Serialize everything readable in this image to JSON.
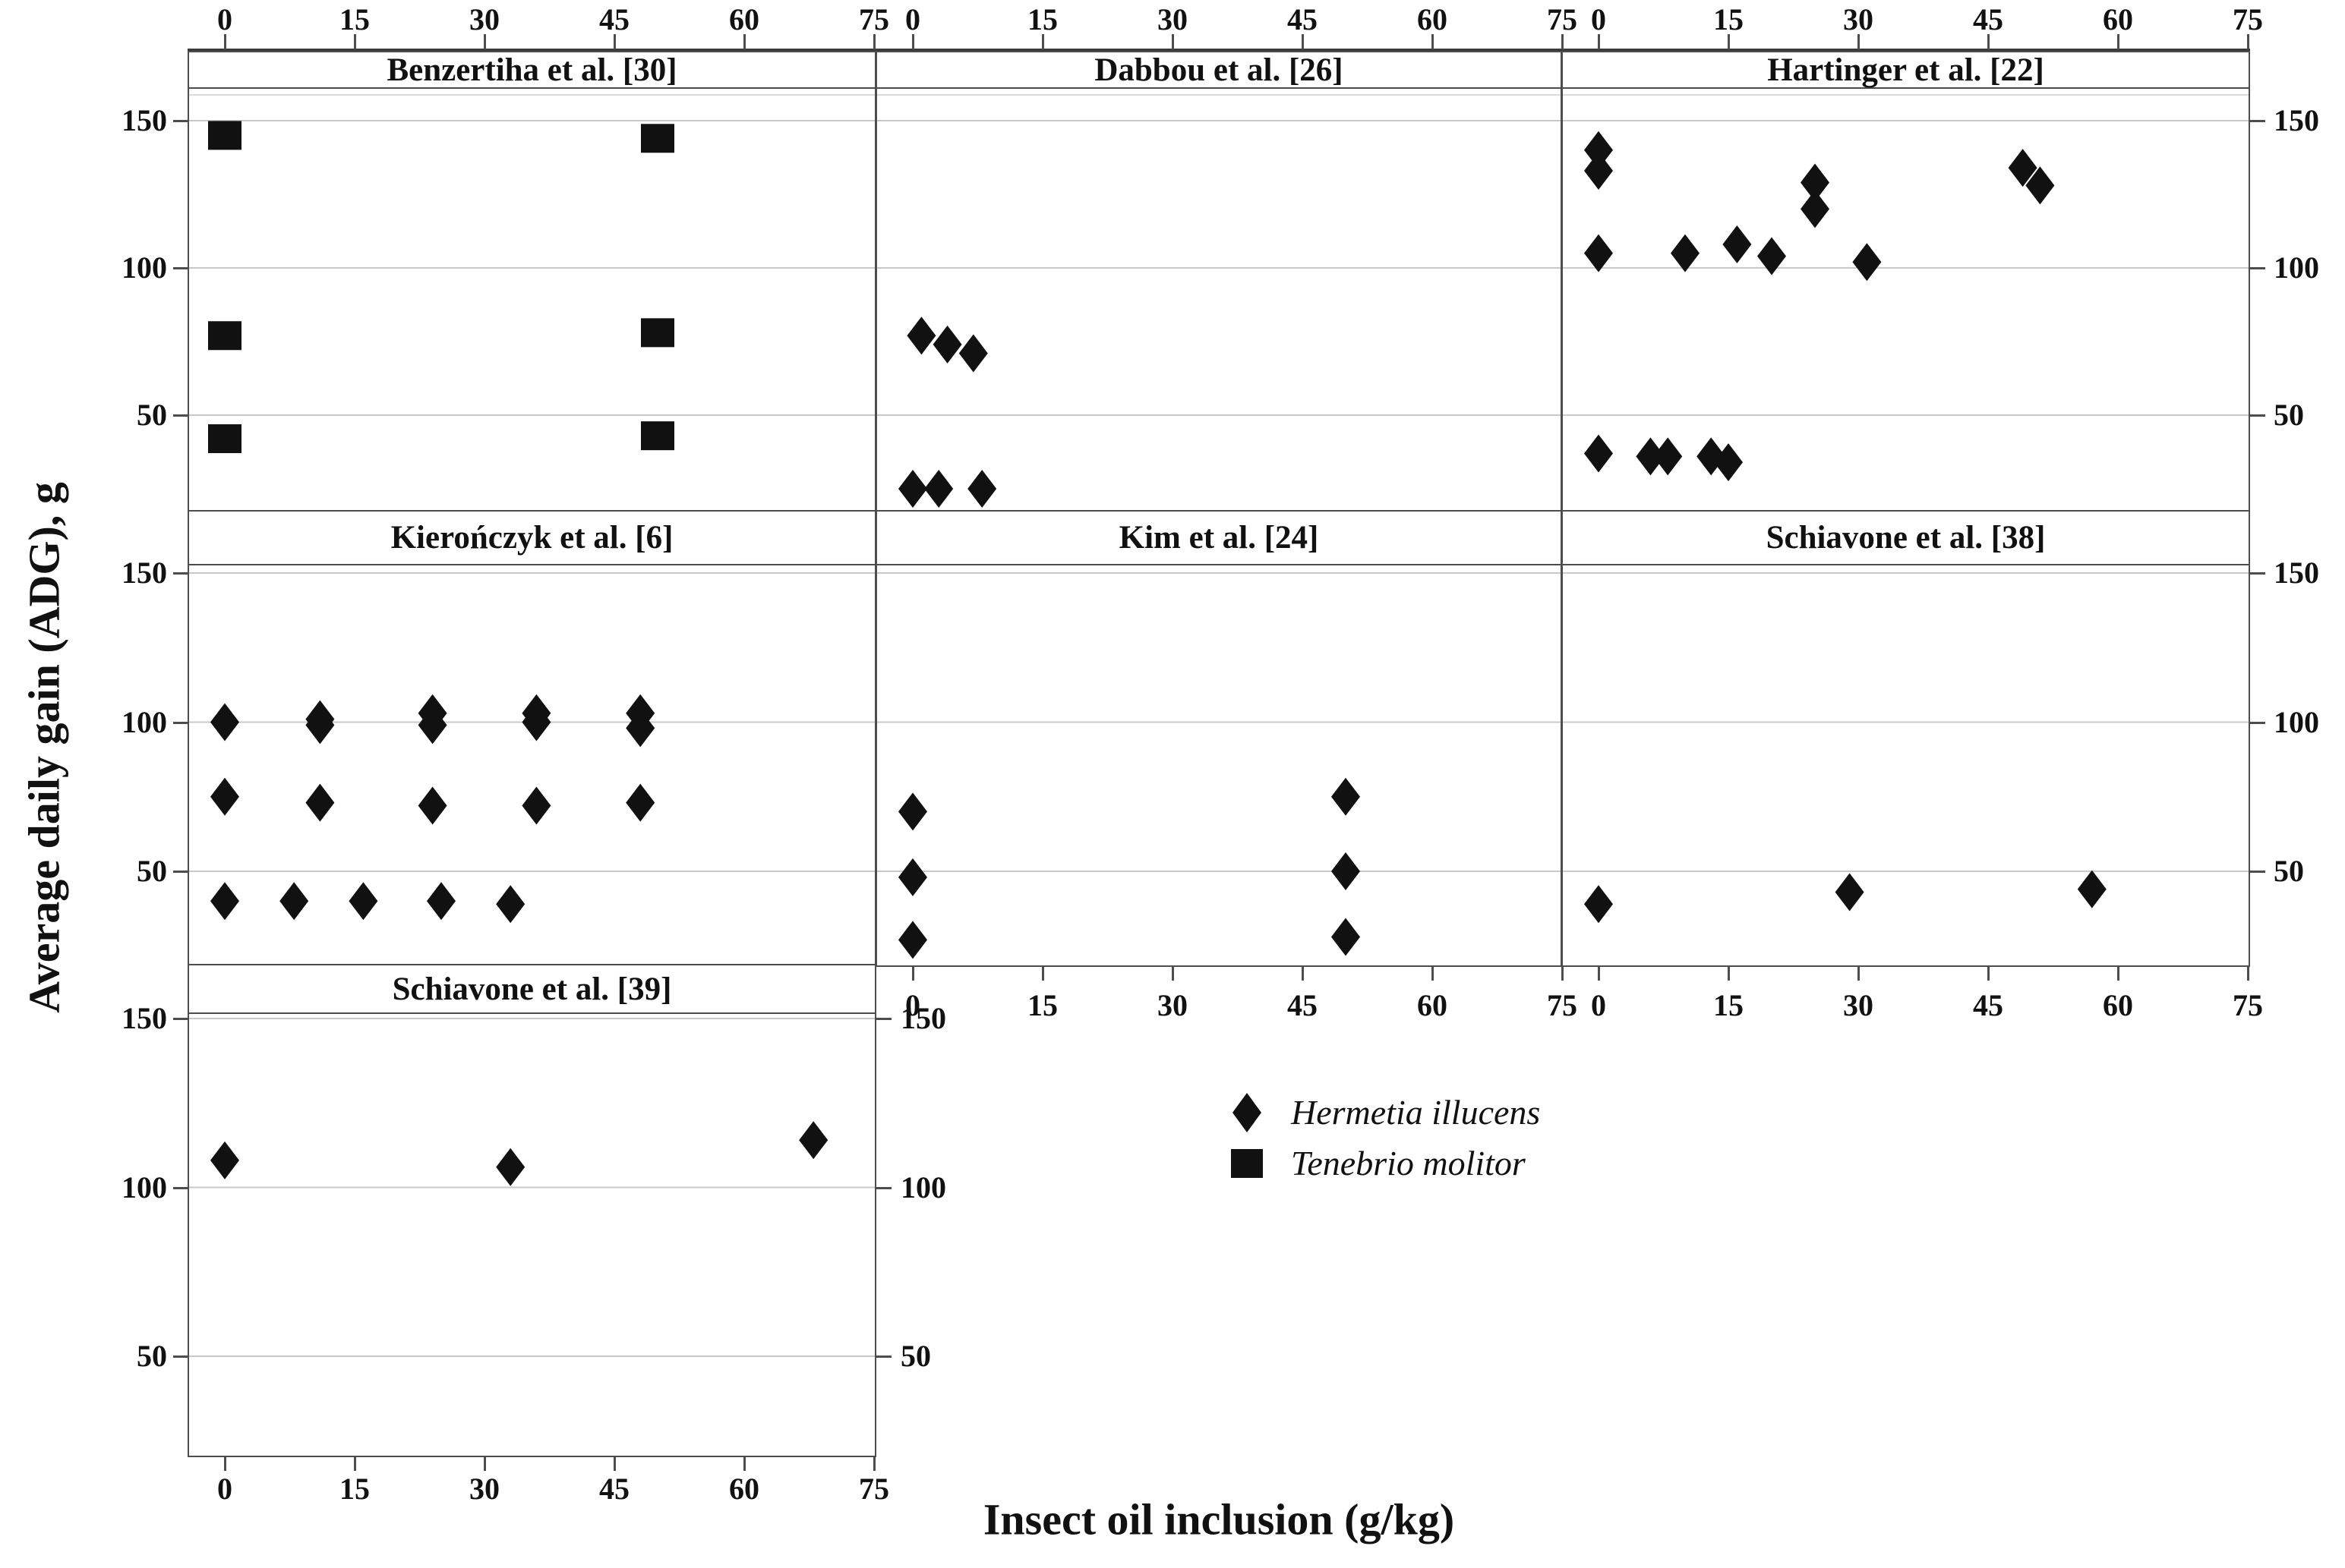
{
  "figure": {
    "x_axis_title": "Insect oil inclusion (g/kg)",
    "y_axis_title": "Average daily gain (ADG), g",
    "colors": {
      "marker": "#111111",
      "grid": "#c9c9c9",
      "grid_faint": "#dcdcdc",
      "border": "#4d4d4d",
      "text": "#111111",
      "background": "#ffffff"
    }
  },
  "chart_data": {
    "type": "scatter",
    "title": "",
    "xlabel": "Insect oil inclusion (g/kg)",
    "ylabel": "Average daily gain (ADG), g",
    "facet_layout": {
      "rows": 3,
      "cols": 3,
      "shared_x": true,
      "shared_y": true
    },
    "x_ticks": [
      0,
      15,
      30,
      45,
      60,
      75
    ],
    "y_ticks": [
      150,
      100,
      50
    ],
    "xlim": [
      -4,
      79
    ],
    "ylim": [
      15,
      163
    ],
    "grid": "horizontal-only",
    "legend_position": "bottom-center",
    "legend": [
      {
        "label": "Hermetia illucens",
        "marker": "diamond"
      },
      {
        "label": "Tenebrio molitor",
        "marker": "square"
      }
    ],
    "panels": [
      {
        "title": "Benzertiha et al. [30]",
        "row": 0,
        "col": 0,
        "species": "Tenebrio molitor",
        "marker": "square",
        "points": [
          [
            0,
            145
          ],
          [
            50,
            144
          ],
          [
            0,
            77
          ],
          [
            50,
            78
          ],
          [
            0,
            42
          ],
          [
            50,
            43
          ]
        ]
      },
      {
        "title": "Dabbou et al. [26]",
        "row": 0,
        "col": 1,
        "species": "Hermetia illucens",
        "marker": "diamond",
        "points": [
          [
            1,
            77
          ],
          [
            4,
            74
          ],
          [
            7,
            71
          ],
          [
            0,
            25
          ],
          [
            3,
            25
          ],
          [
            8,
            25
          ]
        ]
      },
      {
        "title": "Hartinger et al. [22]",
        "row": 0,
        "col": 2,
        "species": "Hermetia illucens",
        "marker": "diamond",
        "points": [
          [
            0,
            140
          ],
          [
            0,
            133
          ],
          [
            0,
            105
          ],
          [
            10,
            105
          ],
          [
            16,
            108
          ],
          [
            20,
            104
          ],
          [
            25,
            129
          ],
          [
            25,
            120
          ],
          [
            31,
            102
          ],
          [
            49,
            134
          ],
          [
            51,
            128
          ],
          [
            0,
            37
          ],
          [
            6,
            36
          ],
          [
            8,
            36
          ],
          [
            13,
            36
          ],
          [
            15,
            34
          ]
        ]
      },
      {
        "title": "Kierończyk et al. [6]",
        "row": 1,
        "col": 0,
        "species": "Hermetia illucens",
        "marker": "diamond",
        "points": [
          [
            0,
            100
          ],
          [
            11,
            101
          ],
          [
            11,
            99
          ],
          [
            24,
            103
          ],
          [
            24,
            99
          ],
          [
            36,
            103
          ],
          [
            36,
            100
          ],
          [
            48,
            103
          ],
          [
            48,
            98
          ],
          [
            0,
            75
          ],
          [
            11,
            73
          ],
          [
            24,
            72
          ],
          [
            36,
            72
          ],
          [
            48,
            73
          ],
          [
            0,
            40
          ],
          [
            8,
            40
          ],
          [
            16,
            40
          ],
          [
            25,
            40
          ],
          [
            33,
            39
          ]
        ]
      },
      {
        "title": "Kim et al. [24]",
        "row": 1,
        "col": 1,
        "species": "Hermetia illucens",
        "marker": "diamond",
        "points": [
          [
            0,
            70
          ],
          [
            0,
            48
          ],
          [
            0,
            27
          ],
          [
            50,
            75
          ],
          [
            50,
            50
          ],
          [
            50,
            28
          ]
        ]
      },
      {
        "title": "Schiavone et al. [38]",
        "row": 1,
        "col": 2,
        "species": "Hermetia illucens",
        "marker": "diamond",
        "points": [
          [
            0,
            39
          ],
          [
            29,
            43
          ],
          [
            57,
            44
          ]
        ]
      },
      {
        "title": "Schiavone et al. [39]",
        "row": 2,
        "col": 0,
        "species": "Hermetia illucens",
        "marker": "diamond",
        "points": [
          [
            0,
            108
          ],
          [
            33,
            106
          ],
          [
            68,
            114
          ]
        ]
      }
    ]
  }
}
